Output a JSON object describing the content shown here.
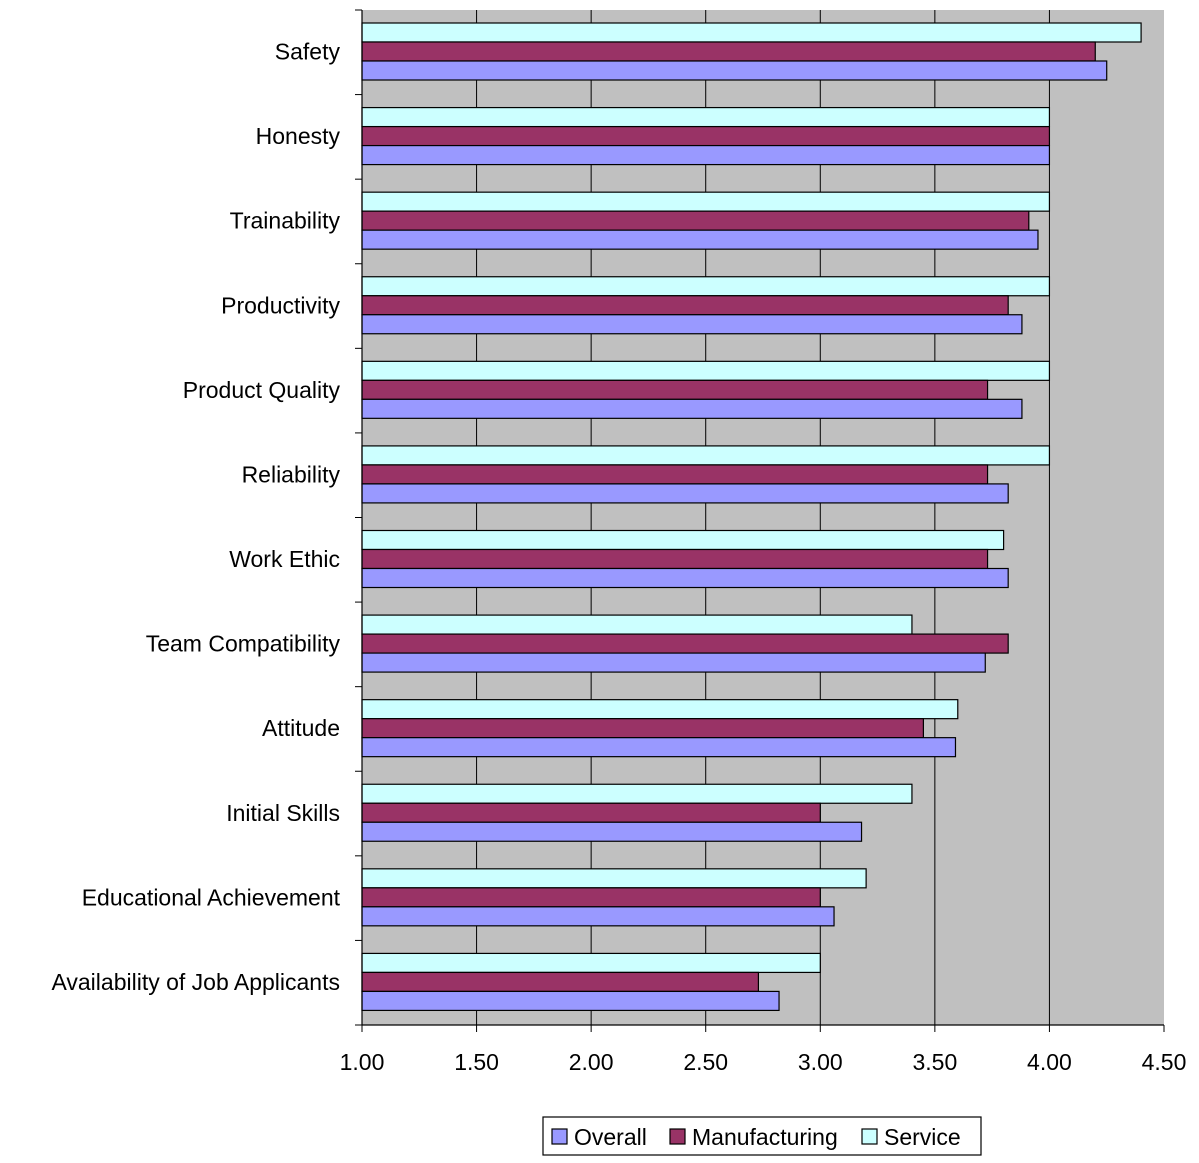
{
  "chart_data": {
    "type": "bar",
    "orientation": "horizontal",
    "title": "",
    "xlabel": "",
    "ylabel": "",
    "xlim": [
      1.0,
      4.5
    ],
    "x_ticks": [
      "1.00",
      "1.50",
      "2.00",
      "2.50",
      "3.00",
      "3.50",
      "4.00",
      "4.50"
    ],
    "grid": "vertical gridlines",
    "legend_position": "bottom",
    "categories": [
      "Safety",
      "Honesty",
      "Trainability",
      "Productivity",
      "Product Quality",
      "Reliability",
      "Work Ethic",
      "Team Compatibility",
      "Attitude",
      "Initial Skills",
      "Educational Achievement",
      "Availability of Job Applicants"
    ],
    "series": [
      {
        "name": "Overall",
        "color": "#9999ff",
        "values": [
          4.25,
          4.0,
          3.95,
          3.88,
          3.88,
          3.82,
          3.82,
          3.72,
          3.59,
          3.18,
          3.06,
          2.82
        ]
      },
      {
        "name": "Manufacturing",
        "color": "#993366",
        "values": [
          4.2,
          4.0,
          3.91,
          3.82,
          3.73,
          3.73,
          3.73,
          3.82,
          3.45,
          3.0,
          3.0,
          2.73
        ]
      },
      {
        "name": "Service",
        "color": "#ccffff",
        "values": [
          4.4,
          4.0,
          4.0,
          4.0,
          4.0,
          4.0,
          3.8,
          3.4,
          3.6,
          3.4,
          3.2,
          3.0
        ]
      }
    ],
    "plot_background": "#c0c0c0"
  }
}
